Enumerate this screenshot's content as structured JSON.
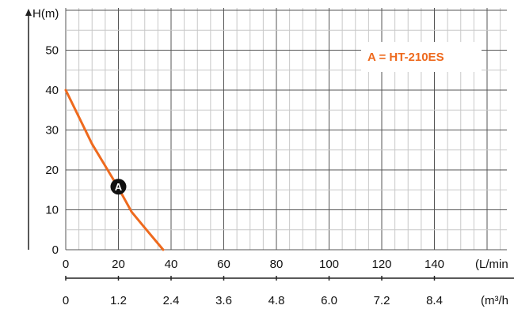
{
  "chart_data": {
    "type": "line",
    "x_axis": {
      "unit_label": "(L/min",
      "min": 0,
      "max": 160,
      "tick_values": [
        0,
        20,
        40,
        60,
        80,
        100,
        120,
        140
      ],
      "tick_labels": [
        "0",
        "20",
        "40",
        "60",
        "80",
        "100",
        "120",
        "140"
      ]
    },
    "x_axis_secondary": {
      "unit_label": "(m³/h",
      "tick_values": [
        0,
        20,
        40,
        60,
        80,
        100,
        120,
        140
      ],
      "tick_labels": [
        "0",
        "1.2",
        "2.4",
        "3.6",
        "4.8",
        "6.0",
        "7.2",
        "8.4"
      ]
    },
    "y_axis": {
      "label": "H(m)",
      "min": 0,
      "max": 57,
      "tick_values": [
        0,
        10,
        20,
        30,
        40,
        50
      ],
      "tick_labels": [
        "0",
        "10",
        "20",
        "30",
        "40",
        "50"
      ]
    },
    "grid": true,
    "series": [
      {
        "marker_label": "A",
        "color": "#ee6a1e",
        "x": [
          0,
          10,
          20,
          25,
          30,
          37
        ],
        "y": [
          40,
          26.5,
          15.5,
          9.5,
          5.5,
          0
        ]
      }
    ],
    "marker": {
      "x": 20,
      "y": 15.8,
      "text": "A",
      "color": "#111111"
    },
    "legend": {
      "text": "A = HT-210ES",
      "position": "top-right",
      "color": "#ee6a1e"
    }
  }
}
